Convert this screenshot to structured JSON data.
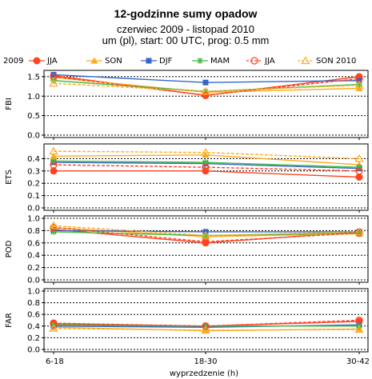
{
  "chart_data": {
    "type": "line",
    "title": "12-godzinne sumy opadow",
    "subtitle1": "czerwiec 2009 - listopad 2010",
    "subtitle2": "um (pl), start: 00 UTC, prog: 0.5 mm",
    "legend_prefix": "2009",
    "x": [
      "6-18",
      "18-30",
      "30-42"
    ],
    "xlabel": "wyprzedzenie (h)",
    "series": [
      {
        "name": "JJA",
        "color": "#ff4422",
        "dashed": false,
        "marker": "circle-filled"
      },
      {
        "name": "SON",
        "color": "#ffaa22",
        "dashed": false,
        "marker": "triangle"
      },
      {
        "name": "DJF",
        "color": "#3366cc",
        "dashed": false,
        "marker": "square"
      },
      {
        "name": "MAM",
        "color": "#44bb44",
        "dashed": false,
        "marker": "star"
      },
      {
        "name": "JJA",
        "color": "#ff4422",
        "dashed": true,
        "marker": "circle-open"
      },
      {
        "name": "SON 2010",
        "color": "#ffaa22",
        "dashed": true,
        "marker": "triangle-open"
      }
    ],
    "panels": [
      {
        "ylabel": "FBI",
        "ylim": [
          0,
          1.6
        ],
        "yticks": [
          "0.0",
          "0.5",
          "1.0",
          "1.5"
        ],
        "ytick_values": [
          0,
          0.5,
          1.0,
          1.5
        ],
        "values": [
          [
            1.53,
            1.02,
            1.5
          ],
          [
            1.48,
            1.1,
            1.2
          ],
          [
            1.55,
            1.35,
            1.4
          ],
          [
            1.4,
            1.12,
            1.3
          ],
          [
            1.5,
            1.02,
            1.45
          ],
          [
            1.33,
            1.12,
            1.28
          ]
        ]
      },
      {
        "ylabel": "ETS",
        "ylim": [
          0,
          0.5
        ],
        "yticks": [
          "0.0",
          "0.1",
          "0.2",
          "0.3",
          "0.4"
        ],
        "ytick_values": [
          0,
          0.1,
          0.2,
          0.3,
          0.4
        ],
        "values": [
          [
            0.3,
            0.3,
            0.25
          ],
          [
            0.42,
            0.43,
            0.35
          ],
          [
            0.37,
            0.36,
            0.32
          ],
          [
            0.38,
            0.37,
            0.33
          ],
          [
            0.35,
            0.33,
            0.3
          ],
          [
            0.46,
            0.45,
            0.4
          ]
        ]
      },
      {
        "ylabel": "POD",
        "ylim": [
          0,
          1.0
        ],
        "yticks": [
          "0.0",
          "0.2",
          "0.4",
          "0.6",
          "0.8",
          "1.0"
        ],
        "ytick_values": [
          0,
          0.2,
          0.4,
          0.6,
          0.8,
          1.0
        ],
        "values": [
          [
            0.82,
            0.6,
            0.78
          ],
          [
            0.85,
            0.7,
            0.75
          ],
          [
            0.8,
            0.78,
            0.78
          ],
          [
            0.78,
            0.72,
            0.76
          ],
          [
            0.85,
            0.62,
            0.76
          ],
          [
            0.88,
            0.72,
            0.78
          ]
        ]
      },
      {
        "ylabel": "FAR",
        "ylim": [
          0,
          1.0
        ],
        "yticks": [
          "0.0",
          "0.2",
          "0.4",
          "0.6",
          "0.8",
          "1.0"
        ],
        "ytick_values": [
          0,
          0.2,
          0.4,
          0.6,
          0.8,
          1.0
        ],
        "values": [
          [
            0.44,
            0.4,
            0.48
          ],
          [
            0.38,
            0.32,
            0.35
          ],
          [
            0.4,
            0.38,
            0.42
          ],
          [
            0.42,
            0.4,
            0.4
          ],
          [
            0.45,
            0.4,
            0.5
          ],
          [
            0.36,
            0.33,
            0.34
          ]
        ]
      }
    ],
    "grid": "dotted-horizontal"
  }
}
